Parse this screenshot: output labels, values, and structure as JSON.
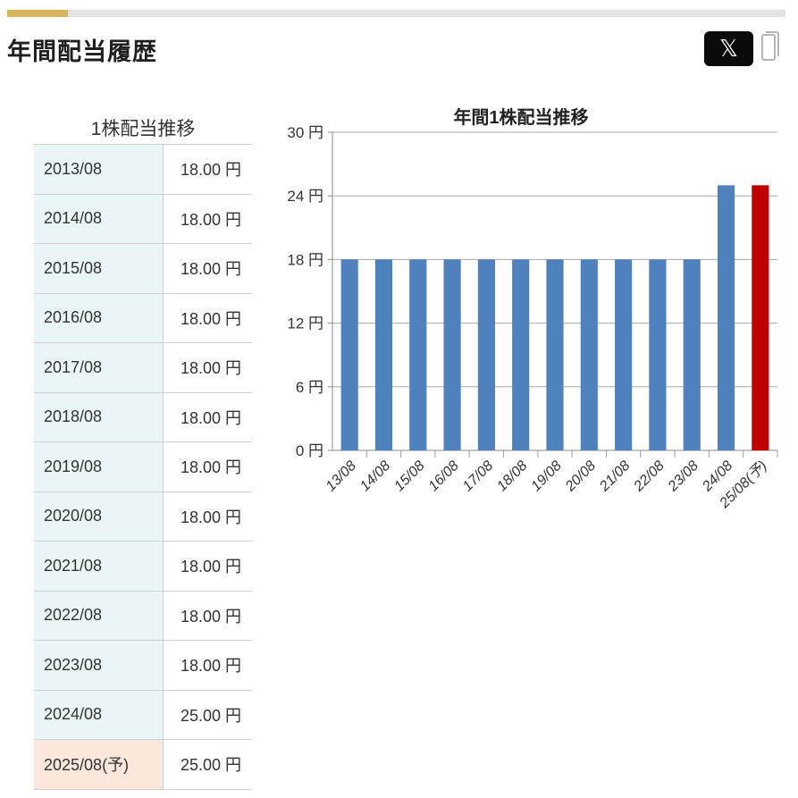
{
  "section": {
    "title": "年間配当履歴"
  },
  "share": {
    "x_label": "𝕏",
    "icons": [
      "x-logo-icon",
      "copy-icon"
    ]
  },
  "table": {
    "caption": "1株配当推移",
    "rows": [
      {
        "year": "2013/08",
        "amount": "18.00 円",
        "forecast": false
      },
      {
        "year": "2014/08",
        "amount": "18.00 円",
        "forecast": false
      },
      {
        "year": "2015/08",
        "amount": "18.00 円",
        "forecast": false
      },
      {
        "year": "2016/08",
        "amount": "18.00 円",
        "forecast": false
      },
      {
        "year": "2017/08",
        "amount": "18.00 円",
        "forecast": false
      },
      {
        "year": "2018/08",
        "amount": "18.00 円",
        "forecast": false
      },
      {
        "year": "2019/08",
        "amount": "18.00 円",
        "forecast": false
      },
      {
        "year": "2020/08",
        "amount": "18.00 円",
        "forecast": false
      },
      {
        "year": "2021/08",
        "amount": "18.00 円",
        "forecast": false
      },
      {
        "year": "2022/08",
        "amount": "18.00 円",
        "forecast": false
      },
      {
        "year": "2023/08",
        "amount": "18.00 円",
        "forecast": false
      },
      {
        "year": "2024/08",
        "amount": "25.00 円",
        "forecast": false
      },
      {
        "year": "2025/08(予)",
        "amount": "25.00 円",
        "forecast": true
      }
    ]
  },
  "colors": {
    "accent": "#d9b65d",
    "bar": "#4f81bd",
    "forecast_bar": "#c00000",
    "year_cell": "#eaf5f8",
    "forecast_cell": "#fbe7dc"
  },
  "chart_data": {
    "type": "bar",
    "title": "年間1株配当推移",
    "categories": [
      "13/08",
      "14/08",
      "15/08",
      "16/08",
      "17/08",
      "18/08",
      "19/08",
      "20/08",
      "21/08",
      "22/08",
      "23/08",
      "24/08",
      "25/08(予)"
    ],
    "values": [
      18,
      18,
      18,
      18,
      18,
      18,
      18,
      18,
      18,
      18,
      18,
      25,
      25
    ],
    "forecast_index": 12,
    "ylim": [
      0,
      30
    ],
    "yticks": [
      0,
      6,
      12,
      18,
      24,
      30
    ],
    "ytick_suffix": " 円",
    "grid": true,
    "xlabel": "",
    "ylabel": ""
  }
}
